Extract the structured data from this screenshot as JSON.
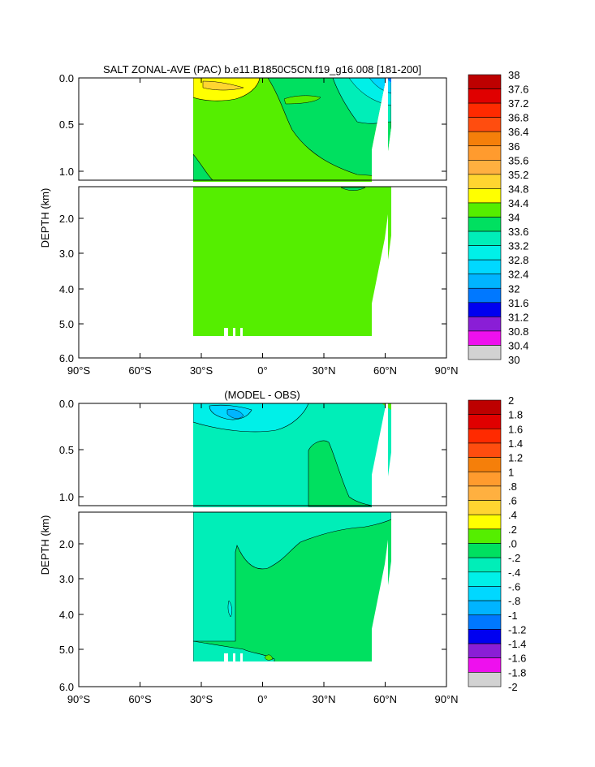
{
  "panels": [
    {
      "title": "SALT ZONAL-AVE (PAC) b.e11.B1850C5CN.f19_g16.008 [181-200]",
      "ylabel": "DEPTH (km)",
      "upper_ticks": [
        "0.0",
        "0.5",
        "1.0"
      ],
      "lower_ticks": [
        "2.0",
        "3.0",
        "4.0",
        "5.0",
        "6.0"
      ],
      "x_ticks": [
        "90°S",
        "60°S",
        "30°S",
        "0°",
        "30°N",
        "60°N",
        "90°N"
      ],
      "colorbar": {
        "labels": [
          "38",
          "37.6",
          "37.2",
          "36.8",
          "36.4",
          "36",
          "35.6",
          "35.2",
          "34.8",
          "34.4",
          "34",
          "33.6",
          "33.2",
          "32.8",
          "32.4",
          "32",
          "31.6",
          "31.2",
          "30.8",
          "30.4",
          "30"
        ]
      }
    },
    {
      "title": "(MODEL - OBS)",
      "ylabel": "DEPTH (km)",
      "upper_ticks": [
        "0.0",
        "0.5",
        "1.0"
      ],
      "lower_ticks": [
        "2.0",
        "3.0",
        "4.0",
        "5.0",
        "6.0"
      ],
      "x_ticks": [
        "90°S",
        "60°S",
        "30°S",
        "0°",
        "30°N",
        "60°N",
        "90°N"
      ],
      "colorbar": {
        "labels": [
          "2",
          "1.8",
          "1.6",
          "1.4",
          "1.2",
          "1",
          ".8",
          ".6",
          ".4",
          ".2",
          ".0",
          "-.2",
          "-.4",
          "-.6",
          "-.8",
          "-1",
          "-1.2",
          "-1.4",
          "-1.6",
          "-1.8",
          "-2"
        ]
      }
    }
  ],
  "colors": {
    "scale": [
      "#bd0000",
      "#e00000",
      "#ff2a00",
      "#ff4d0f",
      "#f57f0a",
      "#ff9b2e",
      "#ffb040",
      "#ffd530",
      "#ffff00",
      "#55ee00",
      "#00e060",
      "#00eeb8",
      "#00f0e8",
      "#00d8ff",
      "#00b4ff",
      "#0078ff",
      "#0000f0",
      "#8a1ed6",
      "#ee10ee",
      "#d2d2d2",
      "#828282"
    ]
  },
  "chart_data": [
    {
      "type": "heatmap",
      "title": "SALT ZONAL-AVE (PAC) b.e11.B1850C5CN.f19_g16.008 [181-200]",
      "xlabel": "",
      "ylabel": "DEPTH (km)",
      "x_range": [
        -90,
        90
      ],
      "y_range_km": [
        0,
        6
      ],
      "upper_panel_depth_km": [
        0,
        1.1
      ],
      "lower_panel_depth_km": [
        1.1,
        6
      ],
      "ocean_extent": {
        "lat_south": -34,
        "lat_north": 62,
        "max_depth_km": 5.35
      },
      "levels": [
        38,
        37.6,
        37.2,
        36.8,
        36.4,
        36,
        35.6,
        35.2,
        34.8,
        34.4,
        34,
        33.6,
        33.2,
        32.8,
        32.4,
        32,
        31.6,
        31.2,
        30.8,
        30.4,
        30
      ],
      "dominant_value_range": [
        34.4,
        34.8
      ],
      "features": [
        {
          "range": [
            34.8,
            35.2
          ],
          "lat": [
            -34,
            -2
          ],
          "depth_km": [
            0.0,
            0.15
          ]
        },
        {
          "range": [
            34.0,
            34.4
          ],
          "lat": [
            -20,
            62
          ],
          "depth_km": [
            0.1,
            1.15
          ]
        },
        {
          "range": [
            32.8,
            33.6
          ],
          "lat": [
            38,
            62
          ],
          "depth_km": [
            0.0,
            0.3
          ]
        }
      ]
    },
    {
      "type": "heatmap",
      "title": "(MODEL - OBS)",
      "xlabel": "",
      "ylabel": "DEPTH (km)",
      "x_range": [
        -90,
        90
      ],
      "y_range_km": [
        0,
        6
      ],
      "upper_panel_depth_km": [
        0,
        1.1
      ],
      "lower_panel_depth_km": [
        1.1,
        6
      ],
      "ocean_extent": {
        "lat_south": -34,
        "lat_north": 62,
        "max_depth_km": 5.35
      },
      "levels": [
        2,
        1.8,
        1.6,
        1.4,
        1.2,
        1,
        0.8,
        0.6,
        0.4,
        0.2,
        0,
        -0.2,
        -0.4,
        -0.6,
        -0.8,
        -1,
        -1.2,
        -1.4,
        -1.6,
        -1.8,
        -2
      ],
      "dominant_value_range": [
        -0.2,
        0.0
      ],
      "features": [
        {
          "range": [
            -0.6,
            -0.2
          ],
          "lat": [
            -34,
            20
          ],
          "depth_km": [
            0.0,
            0.12
          ]
        },
        {
          "range": [
            0.0,
            0.2
          ],
          "lat": [
            22,
            62
          ],
          "depth_km": [
            0.4,
            1.15
          ]
        },
        {
          "range": [
            0.0,
            0.2
          ],
          "lat": [
            -18,
            62
          ],
          "depth_km": [
            1.5,
            5.35
          ]
        }
      ]
    }
  ]
}
